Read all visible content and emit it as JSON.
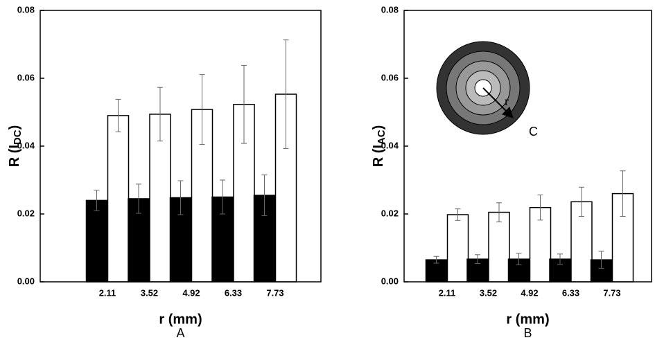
{
  "chart_data": [
    {
      "type": "bar",
      "panel": "A",
      "xlabel": "r (mm)",
      "ylabel": [
        "R (I",
        "DC",
        ")"
      ],
      "categories": [
        "2.11",
        "3.52",
        "4.92",
        "6.33",
        "7.73"
      ],
      "series": [
        {
          "color": "#000000",
          "values": [
            0.024,
            0.0245,
            0.0248,
            0.025,
            0.0255
          ],
          "errors": [
            0.003,
            0.0043,
            0.005,
            0.005,
            0.006
          ]
        },
        {
          "color": "#ffffff",
          "values": [
            0.049,
            0.0494,
            0.0508,
            0.0523,
            0.0553
          ],
          "errors": [
            0.0048,
            0.0079,
            0.0103,
            0.0115,
            0.016
          ]
        }
      ],
      "ylim": [
        0,
        0.08
      ],
      "yticks": [
        {
          "value": 0,
          "label": "0.00"
        },
        0.02,
        0.04,
        0.06,
        0.08
      ]
    },
    {
      "type": "bar",
      "panel": "B",
      "xlabel": "r (mm)",
      "ylabel": [
        "R (I",
        "AC",
        ")"
      ],
      "categories": [
        "2.11",
        "3.52",
        "4.92",
        "6.33",
        "7.73"
      ],
      "series": [
        {
          "color": "#000000",
          "values": [
            0.0065,
            0.0067,
            0.0067,
            0.0067,
            0.0065
          ],
          "errors": [
            0.001,
            0.0013,
            0.0017,
            0.0015,
            0.0025
          ]
        },
        {
          "color": "#ffffff",
          "values": [
            0.0198,
            0.0205,
            0.0219,
            0.0236,
            0.026
          ],
          "errors": [
            0.0017,
            0.0028,
            0.0037,
            0.0043,
            0.0067
          ]
        }
      ],
      "ylim": [
        0,
        0.08
      ],
      "yticks": [
        {
          "value": 0,
          "label": "0.00"
        },
        0.02,
        0.04,
        0.06,
        0.08
      ],
      "inset_labels": [
        "r",
        "C"
      ]
    }
  ]
}
